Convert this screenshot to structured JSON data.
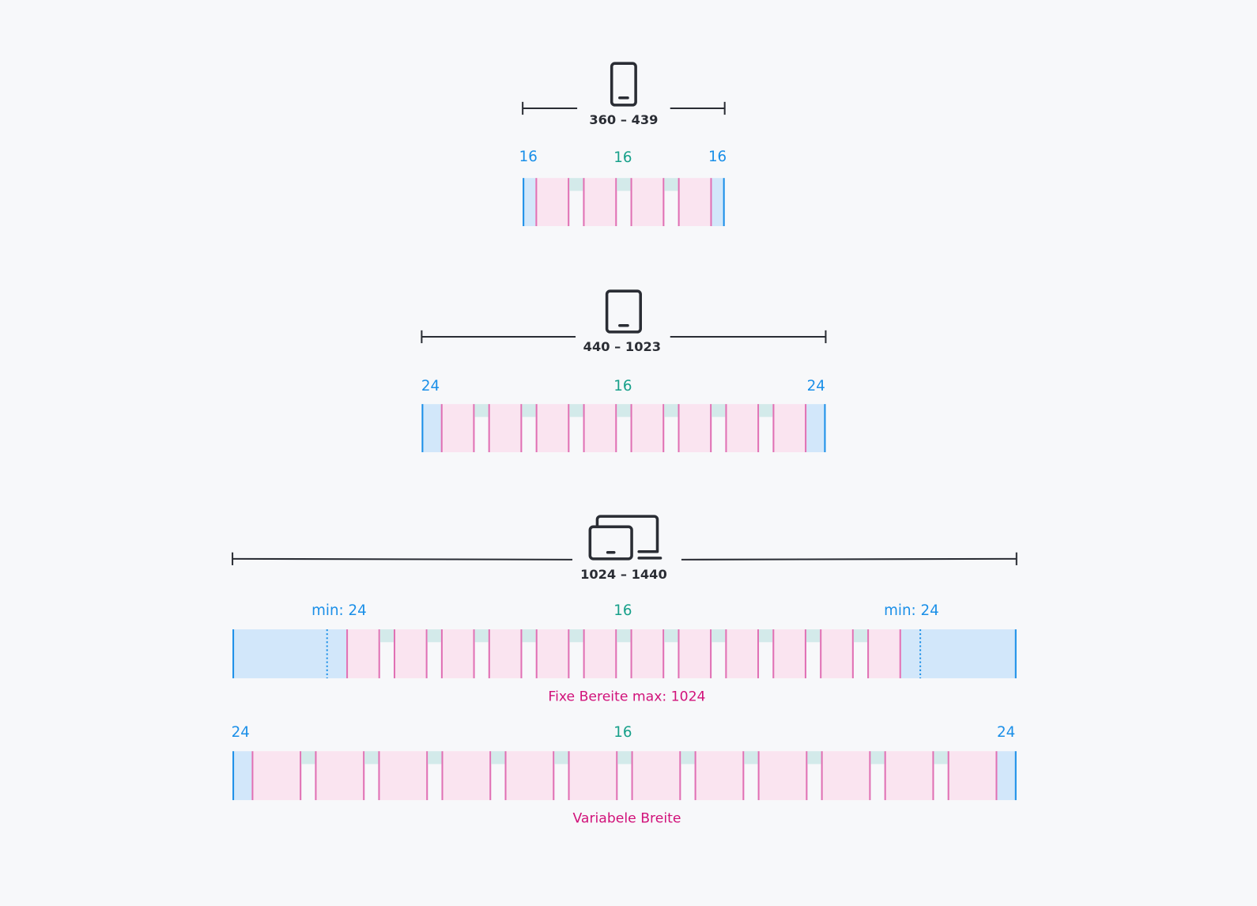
{
  "colors": {
    "margin_fill": "#d2e7fa",
    "margin_edge": "#1a8fe8",
    "column_fill": "#fae4f0",
    "column_edge": "#e070b4",
    "gutter_fill": "#d3eaea",
    "label_margin": "#1a8fe8",
    "label_gutter": "#17a08a",
    "caption": "#d1127a",
    "text": "#2a2d34"
  },
  "breakpoints": [
    {
      "icon": "smartphone-icon",
      "range": "360 – 439",
      "grids": [
        {
          "columns": 4,
          "margin_label_left": "16",
          "gutter_label": "16",
          "margin_label_right": "16",
          "type": "fluid"
        }
      ]
    },
    {
      "icon": "tablet-icon",
      "range": "440 – 1023",
      "grids": [
        {
          "columns": 8,
          "margin_label_left": "24",
          "gutter_label": "16",
          "margin_label_right": "24",
          "type": "fluid"
        }
      ]
    },
    {
      "icon": "desktop-devices-icon",
      "range": "1024 – 1440",
      "grids": [
        {
          "columns": 12,
          "margin_label_left": "min: 24",
          "gutter_label": "16",
          "margin_label_right": "min: 24",
          "type": "fixed",
          "caption": "Fixe Bereite max: 1024"
        },
        {
          "columns": 12,
          "margin_label_left": "24",
          "gutter_label": "16",
          "margin_label_right": "24",
          "type": "fluid",
          "caption": "Variabele Breite"
        }
      ]
    }
  ]
}
